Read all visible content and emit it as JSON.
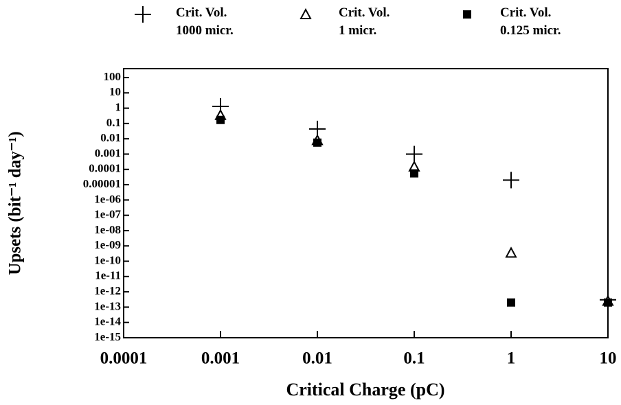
{
  "chart_data": {
    "type": "scatter",
    "x_label": "Critical Charge (pC)",
    "y_label": "Upsets (bit⁻¹ day⁻¹)",
    "x_log": true,
    "y_log": true,
    "xlim": [
      0.0001,
      10
    ],
    "xticks": [
      0.0001,
      0.001,
      0.01,
      0.1,
      1,
      10
    ],
    "ylim": [
      1e-15,
      100
    ],
    "yticks": [
      100,
      10,
      1,
      0.1,
      0.01,
      0.001,
      0.0001,
      {
        "value": 1e-05,
        "label": "0.00001"
      },
      {
        "value": 1e-06,
        "label": "1e-06"
      },
      {
        "value": 1e-07,
        "label": "1e-07"
      },
      {
        "value": 1e-08,
        "label": "1e-08"
      },
      {
        "value": 1e-09,
        "label": "1e-09"
      },
      {
        "value": 1e-10,
        "label": "1e-10"
      },
      {
        "value": 1e-11,
        "label": "1e-11"
      },
      {
        "value": 1e-12,
        "label": "1e-12"
      },
      {
        "value": 1e-13,
        "label": "1e-13"
      },
      {
        "value": 1e-14,
        "label": "1e-14"
      },
      {
        "value": 1e-15,
        "label": "1e-15"
      }
    ],
    "legend_position": "top",
    "series": [
      {
        "name": "Crit. Vol.\n1000 micr.",
        "marker": "plus",
        "color": "#000000",
        "x": [
          0.001,
          0.01,
          0.1,
          1,
          10
        ],
        "values": [
          1.3,
          0.044,
          0.001,
          2e-05,
          3e-13
        ]
      },
      {
        "name": "Crit. Vol.\n1 micr.",
        "marker": "triangle",
        "color": "#000000",
        "x": [
          0.001,
          0.01,
          0.1,
          1,
          10
        ],
        "values": [
          0.35,
          0.008,
          0.00015,
          3.5e-10,
          2.5e-13
        ]
      },
      {
        "name": "Crit. Vol.\n0.125 micr.",
        "marker": "square",
        "color": "#000000",
        "x": [
          0.001,
          0.01,
          0.1,
          1,
          10
        ],
        "values": [
          0.17,
          0.0056,
          5.5e-05,
          2e-13,
          2e-13
        ]
      }
    ]
  }
}
